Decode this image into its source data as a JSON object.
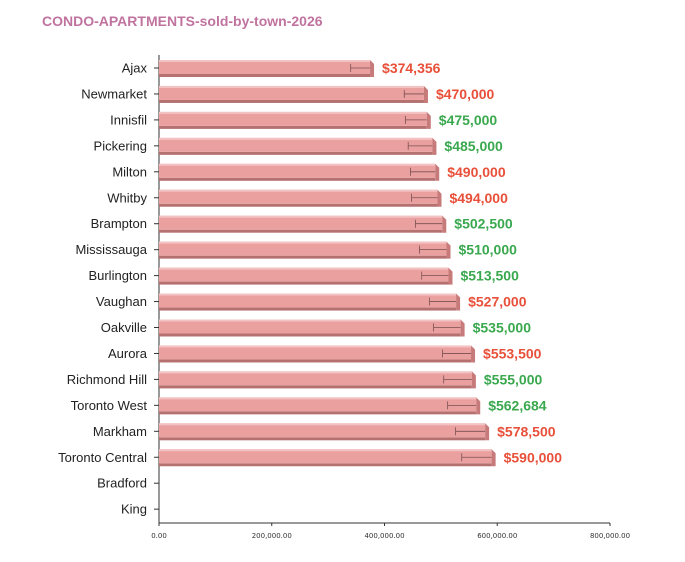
{
  "title": "CONDO-APARTMENTS-sold-by-town-2026",
  "chart_data": {
    "type": "bar",
    "orientation": "horizontal",
    "title": "CONDO-APARTMENTS-sold-by-town-2026",
    "xlabel": "",
    "ylabel": "",
    "xlim": [
      0,
      800000
    ],
    "x_ticks": [
      "0.00",
      "200,000.00",
      "400,000.00",
      "600,000.00",
      "800,000.00"
    ],
    "x_tick_values": [
      0,
      200000,
      400000,
      600000,
      800000
    ],
    "grid": false,
    "legend": "none",
    "categories": [
      "Ajax",
      "Newmarket",
      "Innisfil",
      "Pickering",
      "Milton",
      "Whitby",
      "Brampton",
      "Mississauga",
      "Burlington",
      "Vaughan",
      "Oakville",
      "Aurora",
      "Richmond Hill",
      "Toronto West",
      "Markham",
      "Toronto Central",
      "Bradford",
      "King"
    ],
    "values": [
      374356,
      470000,
      475000,
      485000,
      490000,
      494000,
      502500,
      510000,
      513500,
      527000,
      535000,
      553500,
      555000,
      562684,
      578500,
      590000,
      null,
      null
    ],
    "error_low": [
      340000,
      435000,
      437000,
      442000,
      446000,
      448000,
      455000,
      462000,
      466000,
      480000,
      487000,
      503000,
      505000,
      512000,
      526000,
      537000,
      null,
      null
    ],
    "value_labels": [
      "$374,356",
      "$470,000",
      "$475,000",
      "$485,000",
      "$490,000",
      "$494,000",
      "$502,500",
      "$510,000",
      "$513,500",
      "$527,000",
      "$535,000",
      "$553,500",
      "$555,000",
      "$562,684",
      "$578,500",
      "$590,000",
      "",
      ""
    ],
    "label_colors": [
      "#e8503a",
      "#e8503a",
      "#3aa84e",
      "#3aa84e",
      "#e8503a",
      "#e8503a",
      "#3aa84e",
      "#3aa84e",
      "#3aa84e",
      "#e8503a",
      "#3aa84e",
      "#e8503a",
      "#3aa84e",
      "#3aa84e",
      "#e8503a",
      "#e8503a",
      "#e8503a",
      "#e8503a"
    ],
    "colors": {
      "bar_face": "#eba0a0",
      "bar_top": "#f3c3c3",
      "bar_side": "#c77a7a",
      "bar_shadow": "#b57070",
      "axis": "#333333",
      "error_bar": "#7a4f4f",
      "title": "#c0739f",
      "negative_label": "#e8503a",
      "positive_label": "#3aa84e"
    }
  }
}
